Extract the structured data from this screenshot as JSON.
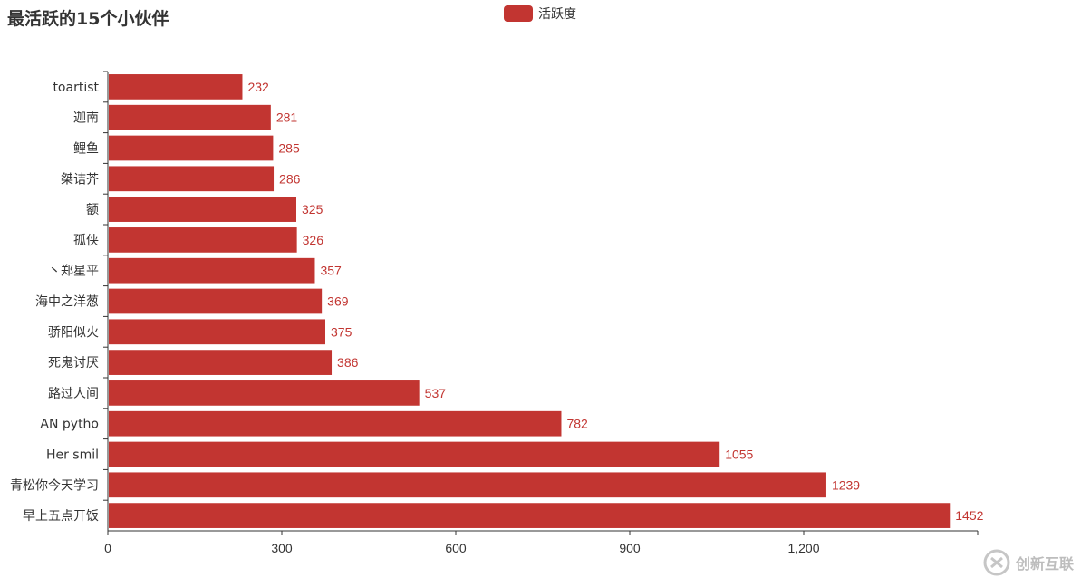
{
  "chart_data": {
    "type": "bar",
    "orientation": "horizontal",
    "title": "最活跃的15个小伙伴",
    "legend": {
      "label": "活跃度",
      "placement": "top-center"
    },
    "categories": [
      "toartist",
      "迦南",
      "鲤鱼",
      "桀诘芥",
      "额",
      "孤侠",
      "丶郑星平",
      "海中之洋葱",
      "骄阳似火",
      "死鬼讨厌",
      "路过人间",
      "AN pytho",
      "Her smil",
      "青松你今天学习",
      "早上五点开饭"
    ],
    "series": [
      {
        "name": "活跃度",
        "values": [
          232,
          281,
          285,
          286,
          325,
          326,
          357,
          369,
          375,
          386,
          537,
          782,
          1055,
          1239,
          1452
        ]
      }
    ],
    "xticks": [
      0,
      300,
      600,
      900,
      1200
    ],
    "xtick_labels": [
      "0",
      "300",
      "600",
      "900",
      "1,200"
    ],
    "xlim": [
      0,
      1500
    ],
    "bar_color": "#c23531",
    "grid": false
  },
  "watermark": {
    "text": "创新互联"
  }
}
